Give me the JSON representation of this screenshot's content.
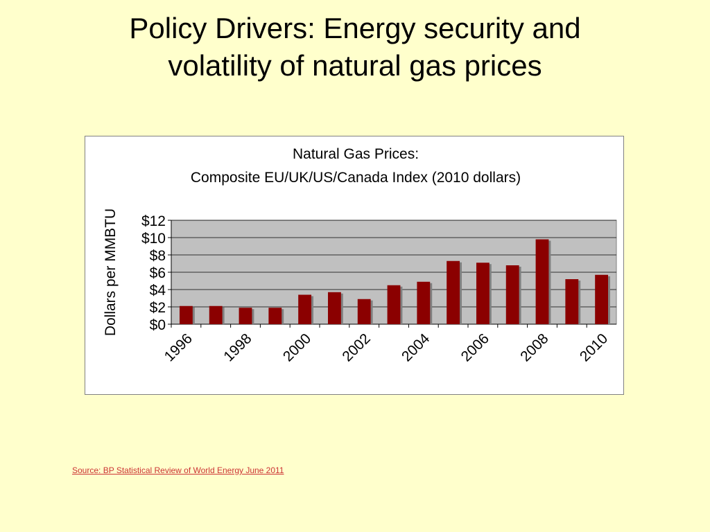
{
  "slide": {
    "title_line1": "Policy Drivers: Energy security and",
    "title_line2": "volatility of natural gas prices"
  },
  "source": {
    "text": "Source: BP Statistical Review of World Energy June 2011"
  },
  "colors": {
    "background": "#ffffcc",
    "bar": "#8b0000",
    "bar_shadow": "#808080",
    "plot_area": "#c0c0c0",
    "link": "#cc3333"
  },
  "chart_data": {
    "type": "bar",
    "title_line1": "Natural Gas Prices:",
    "title_line2": "Composite EU/UK/US/Canada Index (2010 dollars)",
    "ylabel": "Dollars per MMBTU",
    "xlabel": "",
    "ylim": [
      0,
      12
    ],
    "y_ticks": [
      "$0",
      "$2",
      "$4",
      "$6",
      "$8",
      "$10",
      "$12"
    ],
    "grid": true,
    "legend": "none",
    "categories": [
      "1996",
      "1997",
      "1998",
      "1999",
      "2000",
      "2001",
      "2002",
      "2003",
      "2004",
      "2005",
      "2006",
      "2007",
      "2008",
      "2009",
      "2010"
    ],
    "x_tick_labels": [
      "1996",
      "",
      "1998",
      "",
      "2000",
      "",
      "2002",
      "",
      "2004",
      "",
      "2006",
      "",
      "2008",
      "",
      "2010"
    ],
    "values": [
      2.1,
      2.1,
      1.9,
      1.9,
      3.4,
      3.7,
      2.9,
      4.5,
      4.9,
      7.3,
      7.1,
      6.8,
      9.8,
      5.2,
      5.7
    ]
  }
}
